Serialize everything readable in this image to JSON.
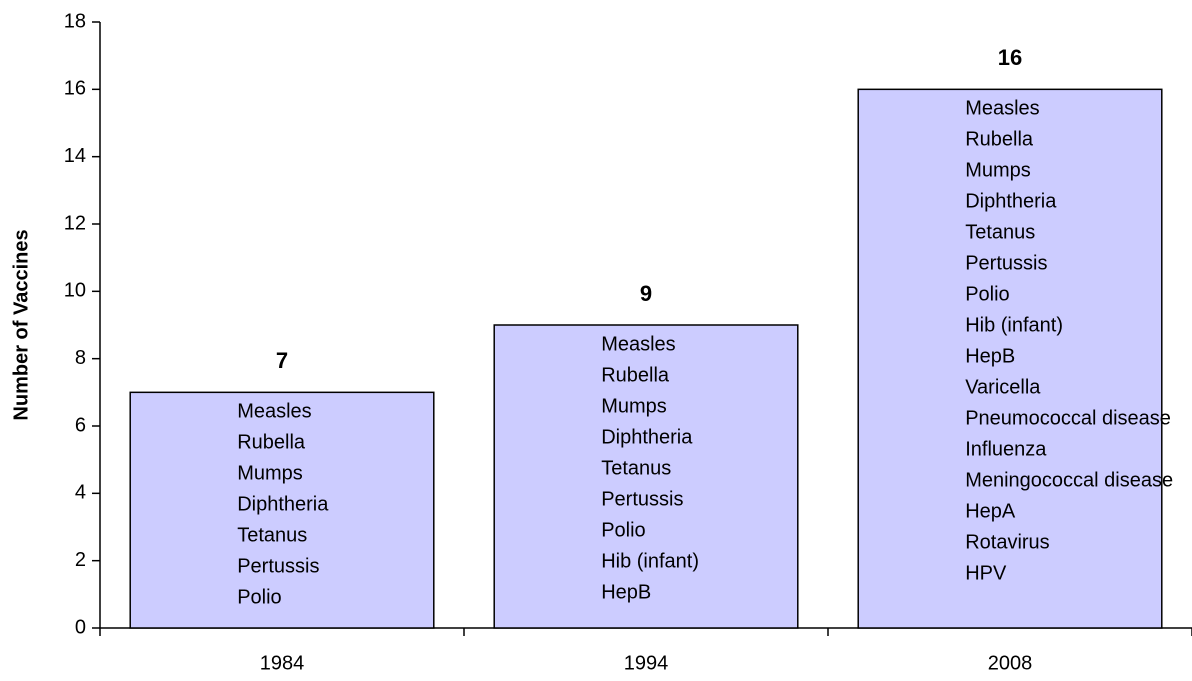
{
  "chart_data": {
    "type": "bar",
    "y_label": "Number of Vaccines",
    "categories": [
      "1984",
      "1994",
      "2008"
    ],
    "values": [
      7,
      9,
      16
    ],
    "color": "#ccccff",
    "ylim": [
      0,
      18
    ],
    "yticks": [
      0,
      2,
      4,
      6,
      8,
      10,
      12,
      14,
      16,
      18
    ],
    "grid": false,
    "bar_texts": [
      [
        "Measles",
        "Rubella",
        "Mumps",
        "Diphtheria",
        "Tetanus",
        "Pertussis",
        "Polio"
      ],
      [
        "Measles",
        "Rubella",
        "Mumps",
        "Diphtheria",
        "Tetanus",
        "Pertussis",
        "Polio",
        "Hib (infant)",
        "HepB"
      ],
      [
        "Measles",
        "Rubella",
        "Mumps",
        "Diphtheria",
        "Tetanus",
        "Pertussis",
        "Polio",
        "Hib (infant)",
        "HepB",
        "Varicella",
        "Pneumococcal disease",
        "Influenza",
        "Meningococcal disease",
        "HepA",
        "Rotavirus",
        "HPV"
      ]
    ]
  }
}
